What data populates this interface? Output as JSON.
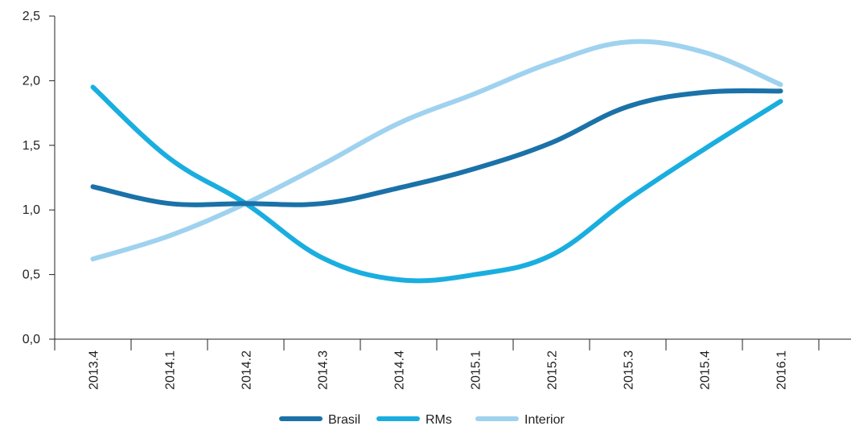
{
  "chart_data": {
    "type": "line",
    "title": "",
    "xlabel": "",
    "ylabel": "",
    "categories": [
      "2013.4",
      "2014.1",
      "2014.2",
      "2014.3",
      "2014.4",
      "2015.1",
      "2015.2",
      "2015.3",
      "2015.4",
      "2016.1"
    ],
    "ylim": [
      0,
      2.5
    ],
    "yticks": [
      "0,0",
      "0,5",
      "1,0",
      "1,5",
      "2,0",
      "2,5"
    ],
    "grid": false,
    "legend_position": "bottom",
    "series": [
      {
        "name": "Brasil",
        "color": "#1a72a8",
        "values": [
          1.18,
          1.05,
          1.05,
          1.05,
          1.17,
          1.32,
          1.52,
          1.8,
          1.91,
          1.92
        ]
      },
      {
        "name": "RMs",
        "color": "#1aaee0",
        "values": [
          1.95,
          1.4,
          1.05,
          0.63,
          0.46,
          0.5,
          0.65,
          1.08,
          1.47,
          1.84
        ]
      },
      {
        "name": "Interior",
        "color": "#9fd2ef",
        "values": [
          0.62,
          0.8,
          1.05,
          1.35,
          1.67,
          1.9,
          2.14,
          2.3,
          2.22,
          1.97
        ]
      }
    ]
  }
}
